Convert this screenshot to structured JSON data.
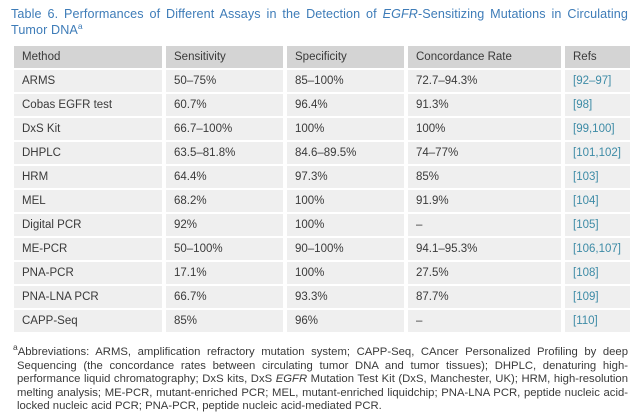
{
  "colors": {
    "title_blue": "#3E7CB8",
    "ref_teal": "#3D8BA6",
    "header_bg": "#D4D4D4",
    "row_bg": "#EFEFEF",
    "text": "#3A3A3A"
  },
  "title": {
    "part1": "Table 6. Performances of Different Assays in the Detection of ",
    "italic": "EGFR",
    "part2": "-Sensitizing Mutations in Circulating Tumor DNA",
    "superscript": "a"
  },
  "table": {
    "columns": [
      "Method",
      "Sensitivity",
      "Specificity",
      "Concordance Rate",
      "Refs"
    ],
    "rows": [
      {
        "method": "ARMS",
        "sensitivity": "50–75%",
        "specificity": "85–100%",
        "concordance": "72.7–94.3%",
        "refs": "[92–97]"
      },
      {
        "method": "Cobas EGFR test",
        "sensitivity": "60.7%",
        "specificity": "96.4%",
        "concordance": "91.3%",
        "refs": "[98]"
      },
      {
        "method": "DxS Kit",
        "sensitivity": "66.7–100%",
        "specificity": "100%",
        "concordance": "100%",
        "refs": "[99,100]"
      },
      {
        "method": "DHPLC",
        "sensitivity": "63.5–81.8%",
        "specificity": "84.6–89.5%",
        "concordance": "74–77%",
        "refs": "[101,102]"
      },
      {
        "method": "HRM",
        "sensitivity": "64.4%",
        "specificity": "97.3%",
        "concordance": "85%",
        "refs": "[103]"
      },
      {
        "method": "MEL",
        "sensitivity": "68.2%",
        "specificity": "100%",
        "concordance": "91.9%",
        "refs": "[104]"
      },
      {
        "method": "Digital PCR",
        "sensitivity": "92%",
        "specificity": "100%",
        "concordance": "–",
        "refs": "[105]"
      },
      {
        "method": "ME-PCR",
        "sensitivity": "50–100%",
        "specificity": "90–100%",
        "concordance": "94.1–95.3%",
        "refs": "[106,107]"
      },
      {
        "method": "PNA-PCR",
        "sensitivity": "17.1%",
        "specificity": "100%",
        "concordance": "27.5%",
        "refs": "[108]"
      },
      {
        "method": "PNA-LNA PCR",
        "sensitivity": "66.7%",
        "specificity": "93.3%",
        "concordance": "87.7%",
        "refs": "[109]"
      },
      {
        "method": "CAPP-Seq",
        "sensitivity": "85%",
        "specificity": "96%",
        "concordance": "–",
        "refs": "[110]"
      }
    ]
  },
  "footnote": {
    "superscript": "a",
    "part1": "Abbreviations: ARMS, amplification refractory mutation system; CAPP-Seq, CAncer Personalized Profiling by deep Sequencing (the concordance rates between circulating tumor DNA and tumor tissues); DHPLC, denaturing high-performance liquid chromatography; DxS kits, DxS ",
    "italic": "EGFR",
    "part2": " Mutation Test Kit (DxS, Manchester, UK); HRM, high-resolution melting analysis; ME-PCR, mutant-enriched PCR; MEL, mutant-enriched liquidchip; PNA-LNA PCR, peptide nucleic acid-locked nucleic acid PCR; PNA-PCR, peptide nucleic acid-mediated PCR."
  }
}
